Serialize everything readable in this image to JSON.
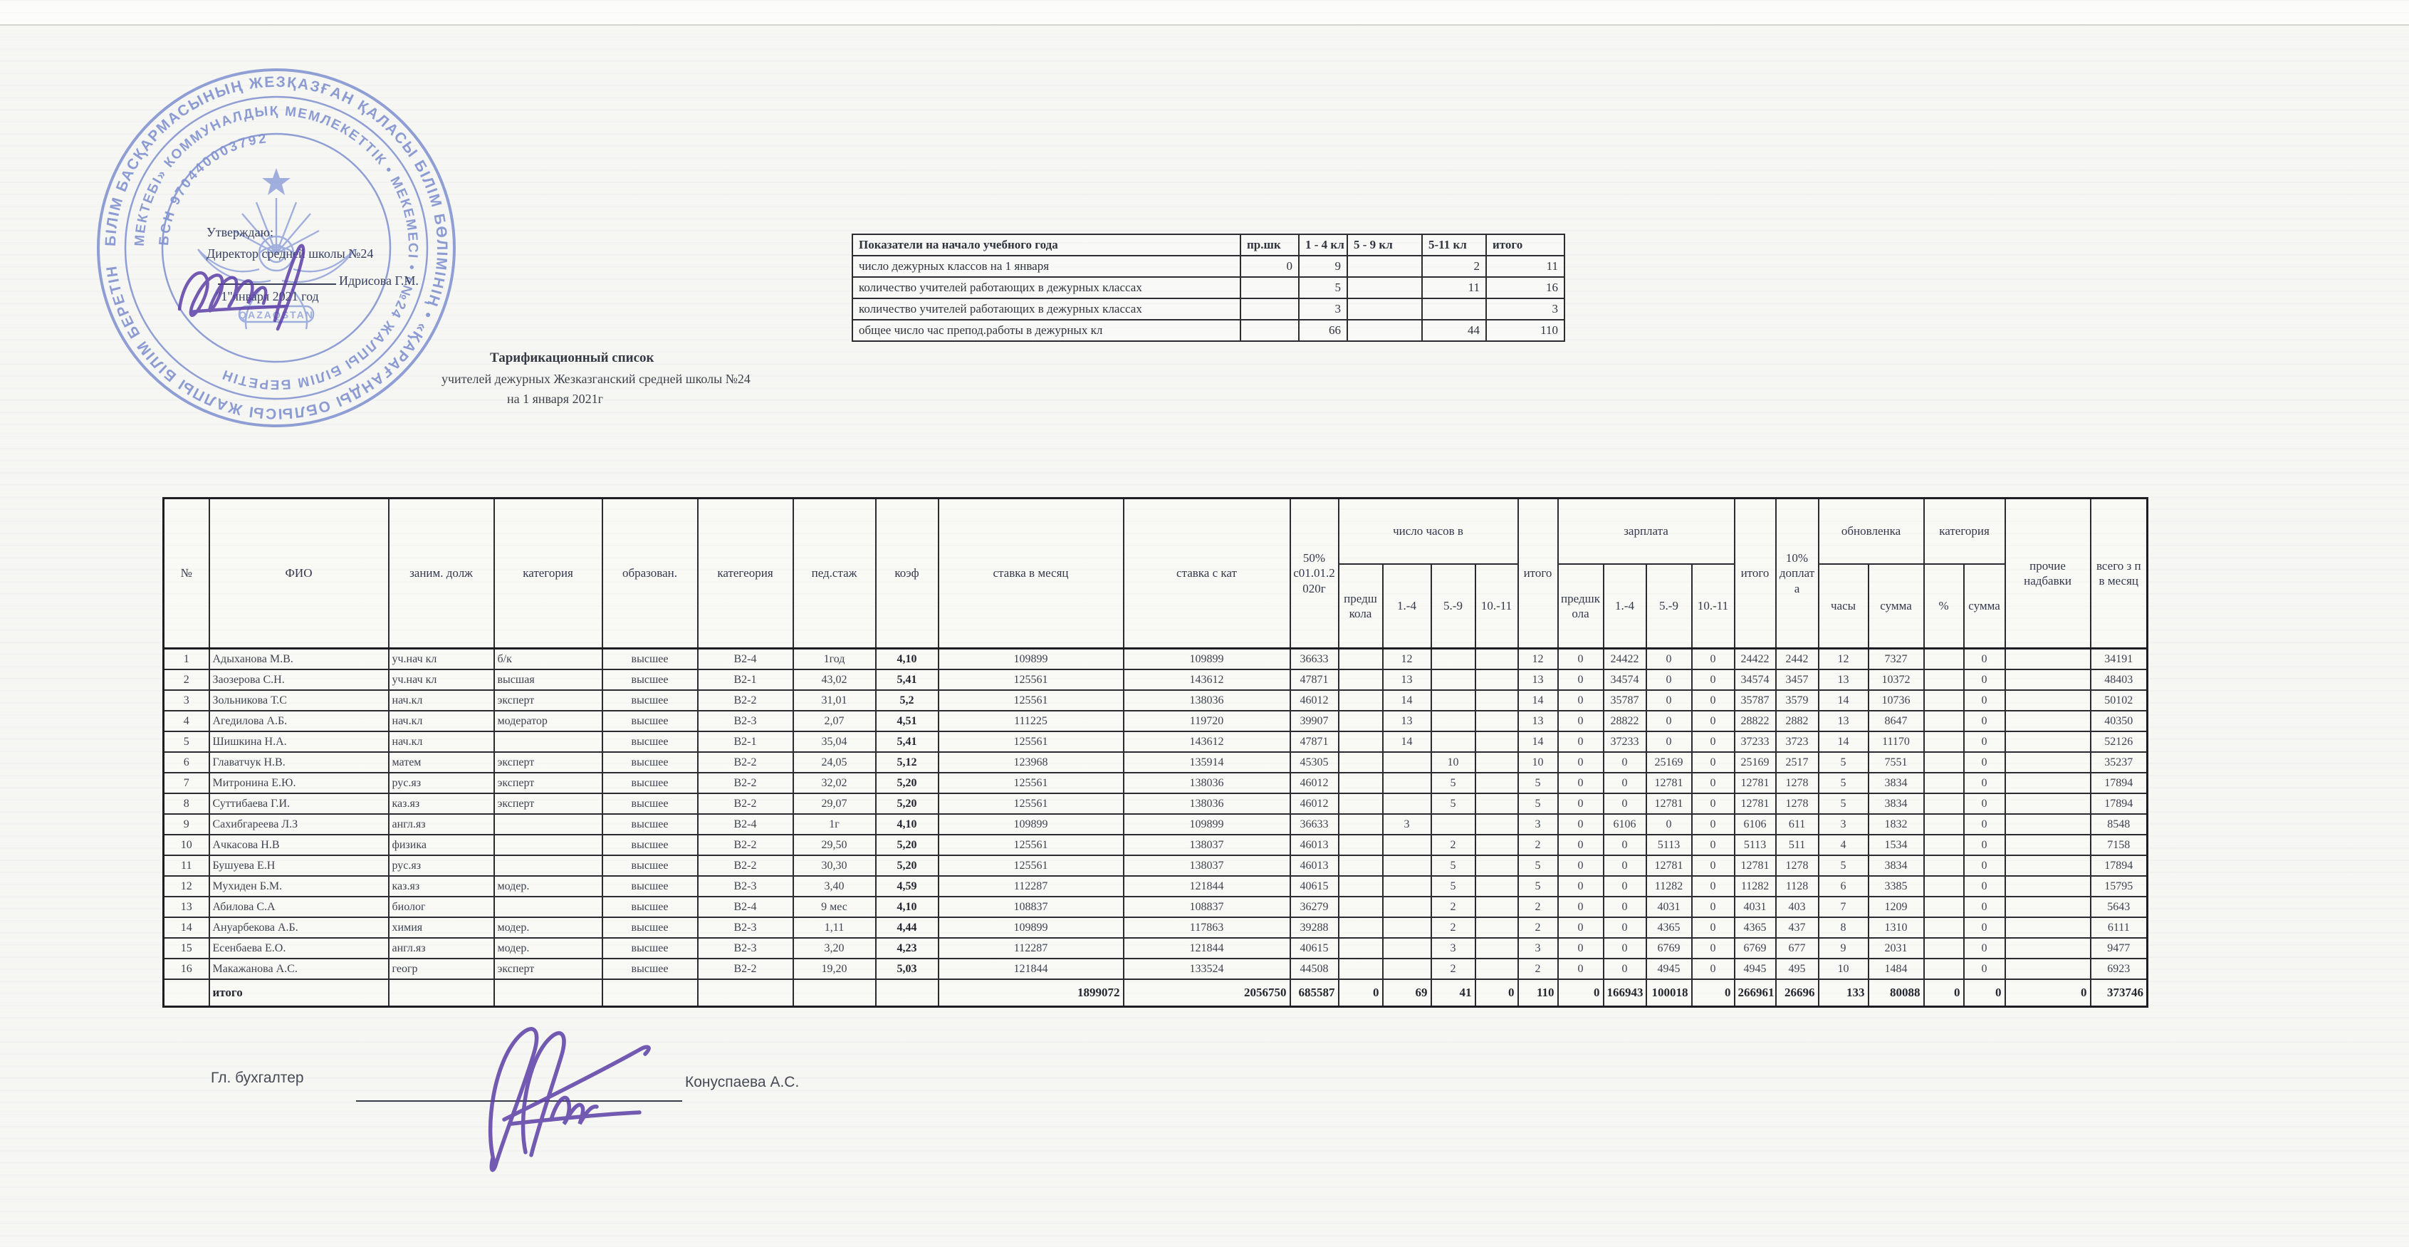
{
  "approval": {
    "approve": "Утверждаю:",
    "director": "Директор средней школы №24",
    "director_name": "Идрисова Г.М.",
    "date": "\"1\"января  2021 год"
  },
  "stamp": {
    "outer_ring": "БІЛІМ БАСҚАРМАСЫНЫҢ ЖЕЗҚАЗҒАН ҚАЛАСЫ БІЛІМ БӨЛІМІНІҢ • «ҚАРАҒАНДЫ ОБЛЫСЫ ЖАЛПЫ БІЛІМ БЕРЕТІН •",
    "inner_ring": "МЕКТЕБІ» КОММУНАЛДЫҚ МЕМЛЕКЕТТІК • МЕКЕМЕСІ • «№24 ЖАЛПЫ БІЛІМ БЕРЕТІН •",
    "bsn": "БСН 970440003792",
    "center": "QAZAQSTAN",
    "ink_color": "#7487cd"
  },
  "summary_table": {
    "headers": [
      "Показатели на начало учебного года",
      "пр.шк",
      "1 - 4 кл",
      "5 - 9 кл",
      "5-11 кл",
      "итого"
    ],
    "rows": [
      [
        "число дежурных классов на 1 января",
        "0",
        "9",
        "",
        "2",
        "11"
      ],
      [
        "количество учителей работающих в дежурных классах",
        "",
        "5",
        "",
        "11",
        "16"
      ],
      [
        "количество учителей работающих в дежурных классах",
        "",
        "3",
        "",
        "",
        "3"
      ],
      [
        "общее число час препод.работы в  дежурных кл",
        "",
        "66",
        "",
        "44",
        "110"
      ]
    ]
  },
  "title": {
    "line1": "Тарификационный список",
    "line2": "учителей  дежурных Жезказганский средней школы №24",
    "line3": "на 1 января 2021г"
  },
  "main_table": {
    "headers": {
      "num": "№",
      "fio": "ФИО",
      "position": "заним. долж",
      "category": "категория",
      "education": "образован.",
      "category2": "категеория",
      "ped_stazh": "пед.стаж",
      "koef": "коэф",
      "stavka": "ставка в месяц",
      "stavka_kat": "ставка с кат",
      "pct50": "50% с01.01.2020г",
      "hours_group": "число часов в",
      "itogo": "итого",
      "zarplata_group": "зарплата",
      "doplata": "10% доплата",
      "obnovlenka_group": "обновленка",
      "kategoriya_group": "категория",
      "prochie": "прочие надбавки",
      "vsego": "всего з п в месяц",
      "sub": {
        "predshkola": "предшкола",
        "g14": "1.-4",
        "g59": "5.-9",
        "g1011": "10.-11",
        "chasy": "часы",
        "summa": "сумма",
        "pct": "%"
      }
    },
    "rows": [
      [
        "1",
        "Адыханова М.В.",
        "уч.нач кл",
        "б/к",
        "высшее",
        "В2-4",
        "1год",
        "4,10",
        "109899",
        "109899",
        "36633",
        "",
        "12",
        "",
        "",
        "12",
        "0",
        "24422",
        "0",
        "0",
        "24422",
        "2442",
        "12",
        "7327",
        "",
        "0",
        "",
        "34191"
      ],
      [
        "2",
        "Заозерова С.Н.",
        "уч.нач кл",
        "высшая",
        "высшее",
        "В2-1",
        "43,02",
        "5,41",
        "125561",
        "143612",
        "47871",
        "",
        "13",
        "",
        "",
        "13",
        "0",
        "34574",
        "0",
        "0",
        "34574",
        "3457",
        "13",
        "10372",
        "",
        "0",
        "",
        "48403"
      ],
      [
        "3",
        "Зольникова Т.С",
        "нач.кл",
        "эксперт",
        "высшее",
        "В2-2",
        "31,01",
        "5,2",
        "125561",
        "138036",
        "46012",
        "",
        "14",
        "",
        "",
        "14",
        "0",
        "35787",
        "0",
        "0",
        "35787",
        "3579",
        "14",
        "10736",
        "",
        "0",
        "",
        "50102"
      ],
      [
        "4",
        "Агедилова А.Б.",
        "нач.кл",
        "модератор",
        "высшее",
        "В2-3",
        "2,07",
        "4,51",
        "111225",
        "119720",
        "39907",
        "",
        "13",
        "",
        "",
        "13",
        "0",
        "28822",
        "0",
        "0",
        "28822",
        "2882",
        "13",
        "8647",
        "",
        "0",
        "",
        "40350"
      ],
      [
        "5",
        "Шишкина Н.А.",
        "нач.кл",
        "",
        "высшее",
        "В2-1",
        "35,04",
        "5,41",
        "125561",
        "143612",
        "47871",
        "",
        "14",
        "",
        "",
        "14",
        "0",
        "37233",
        "0",
        "0",
        "37233",
        "3723",
        "14",
        "11170",
        "",
        "0",
        "",
        "52126"
      ],
      [
        "6",
        "Главатчук Н.В.",
        "матем",
        "эксперт",
        "высшее",
        "В2-2",
        "24,05",
        "5,12",
        "123968",
        "135914",
        "45305",
        "",
        "",
        "10",
        "",
        "10",
        "0",
        "0",
        "25169",
        "0",
        "25169",
        "2517",
        "5",
        "7551",
        "",
        "0",
        "",
        "35237"
      ],
      [
        "7",
        "Митронина Е.Ю.",
        "рус.яз",
        "эксперт",
        "высшее",
        "В2-2",
        "32,02",
        "5,20",
        "125561",
        "138036",
        "46012",
        "",
        "",
        "5",
        "",
        "5",
        "0",
        "0",
        "12781",
        "0",
        "12781",
        "1278",
        "5",
        "3834",
        "",
        "0",
        "",
        "17894"
      ],
      [
        "8",
        "Суттибаева Г.И.",
        "каз.яз",
        "эксперт",
        "высшее",
        "В2-2",
        "29,07",
        "5,20",
        "125561",
        "138036",
        "46012",
        "",
        "",
        "5",
        "",
        "5",
        "0",
        "0",
        "12781",
        "0",
        "12781",
        "1278",
        "5",
        "3834",
        "",
        "0",
        "",
        "17894"
      ],
      [
        "9",
        "Сахибгареева Л.З",
        "англ.яз",
        "",
        "высшее",
        "В2-4",
        "1г",
        "4,10",
        "109899",
        "109899",
        "36633",
        "",
        "3",
        "",
        "",
        "3",
        "0",
        "6106",
        "0",
        "0",
        "6106",
        "611",
        "3",
        "1832",
        "",
        "0",
        "",
        "8548"
      ],
      [
        "10",
        "Ачкасова Н.В",
        "физика",
        "",
        "высшее",
        "В2-2",
        "29,50",
        "5,20",
        "125561",
        "138037",
        "46013",
        "",
        "",
        "2",
        "",
        "2",
        "0",
        "0",
        "5113",
        "0",
        "5113",
        "511",
        "4",
        "1534",
        "",
        "0",
        "",
        "7158"
      ],
      [
        "11",
        "Бушуева Е.Н",
        "рус.яз",
        "",
        "высшее",
        "В2-2",
        "30,30",
        "5,20",
        "125561",
        "138037",
        "46013",
        "",
        "",
        "5",
        "",
        "5",
        "0",
        "0",
        "12781",
        "0",
        "12781",
        "1278",
        "5",
        "3834",
        "",
        "0",
        "",
        "17894"
      ],
      [
        "12",
        "Мухиден Б.М.",
        "каз.яз",
        "модер.",
        "высшее",
        "В2-3",
        "3,40",
        "4,59",
        "112287",
        "121844",
        "40615",
        "",
        "",
        "5",
        "",
        "5",
        "0",
        "0",
        "11282",
        "0",
        "11282",
        "1128",
        "6",
        "3385",
        "",
        "0",
        "",
        "15795"
      ],
      [
        "13",
        "Абилова С.А",
        "биолог",
        "",
        "высшее",
        "В2-4",
        "9 мес",
        "4,10",
        "108837",
        "108837",
        "36279",
        "",
        "",
        "2",
        "",
        "2",
        "0",
        "0",
        "4031",
        "0",
        "4031",
        "403",
        "7",
        "1209",
        "",
        "0",
        "",
        "5643"
      ],
      [
        "14",
        "Ануарбекова А.Б.",
        "химия",
        "модер.",
        "высшее",
        "В2-3",
        "1,11",
        "4,44",
        "109899",
        "117863",
        "39288",
        "",
        "",
        "2",
        "",
        "2",
        "0",
        "0",
        "4365",
        "0",
        "4365",
        "437",
        "8",
        "1310",
        "",
        "0",
        "",
        "6111"
      ],
      [
        "15",
        "Есенбаева Е.О.",
        "англ.яз",
        "модер.",
        "высшее",
        "В2-3",
        "3,20",
        "4,23",
        "112287",
        "121844",
        "40615",
        "",
        "",
        "3",
        "",
        "3",
        "0",
        "0",
        "6769",
        "0",
        "6769",
        "677",
        "9",
        "2031",
        "",
        "0",
        "",
        "9477"
      ],
      [
        "16",
        "Макажанова А.С.",
        "геогр",
        "эксперт",
        "высшее",
        "В2-2",
        "19,20",
        "5,03",
        "121844",
        "133524",
        "44508",
        "",
        "",
        "2",
        "",
        "2",
        "0",
        "0",
        "4945",
        "0",
        "4945",
        "495",
        "10",
        "1484",
        "",
        "0",
        "",
        "6923"
      ]
    ],
    "totals": [
      "",
      "итого",
      "",
      "",
      "",
      "",
      "",
      "",
      "1899072",
      "2056750",
      "685587",
      "0",
      "69",
      "41",
      "0",
      "110",
      "0",
      "166943",
      "100018",
      "0",
      "266961",
      "26696",
      "133",
      "80088",
      "0",
      "0",
      "0",
      "373746"
    ]
  },
  "footer": {
    "label": "Гл. бухгалтер",
    "name": "Конуспаева А.С."
  }
}
